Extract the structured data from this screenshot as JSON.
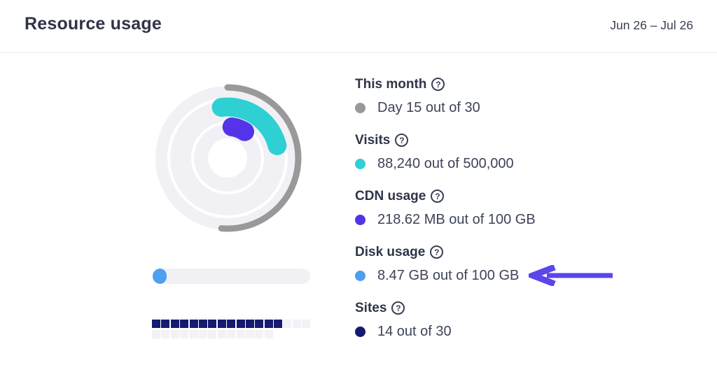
{
  "header": {
    "title": "Resource usage",
    "date_range": "Jun 26 – Jul 26"
  },
  "icons": {
    "help": "?"
  },
  "colors": {
    "text_dark": "#2f3449",
    "text_value": "#3e4359",
    "day_gray": "#999999",
    "visits_teal": "#2fd0d4",
    "cdn_purple": "#5533e8",
    "disk_blue": "#4d9ff0",
    "sites_navy": "#141b70",
    "arrow_purple": "#5a46ec",
    "track_light": "#f1f1f5"
  },
  "chart_data": {
    "type": "donut",
    "title": "Resource usage",
    "period": "Jun 26 – Jul 26",
    "legend_position": "right",
    "rings": [
      {
        "name": "This month",
        "value": 15,
        "max": 30,
        "unit": "days",
        "percent": 50,
        "color": "#999999",
        "display": "Day 15 out of 30",
        "display_arc": {
          "start_deg": 0,
          "end_deg": 185
        }
      },
      {
        "name": "Visits",
        "value": 88240,
        "max": 500000,
        "unit": "visits",
        "percent": 17.6,
        "color": "#2fd0d4",
        "display": "88,240 out of 500,000",
        "display_arc": {
          "start_deg": -7,
          "end_deg": 76
        }
      },
      {
        "name": "CDN usage",
        "value": 218.62,
        "max": 102400,
        "unit": "MB",
        "percent": 0.21,
        "color": "#5533e8",
        "display": "218.62 MB out of 100 GB",
        "display_arc": {
          "start_deg": 8,
          "end_deg": 33
        }
      }
    ],
    "progress_bar": {
      "name": "Disk usage",
      "value": 8.47,
      "max": 100,
      "unit": "GB",
      "percent": 8.47,
      "color": "#4d9ff0",
      "display": "8.47 GB out of 100 GB"
    },
    "segmented_bar": {
      "name": "Sites",
      "value": 14,
      "max": 30,
      "filled": 14,
      "total": 30,
      "per_row": 17,
      "color": "#141b70",
      "display": "14 out of 30"
    }
  },
  "stats": [
    {
      "label": "This month",
      "value": "Day 15 out of 30",
      "color": "#999999"
    },
    {
      "label": "Visits",
      "value": "88,240 out of 500,000",
      "color": "#2fd0d4"
    },
    {
      "label": "CDN usage",
      "value": "218.62 MB out of 100 GB",
      "color": "#5533e8"
    },
    {
      "label": "Disk usage",
      "value": "8.47 GB out of 100 GB",
      "color": "#4d9ff0"
    },
    {
      "label": "Sites",
      "value": "14 out of 30",
      "color": "#141b70"
    }
  ]
}
